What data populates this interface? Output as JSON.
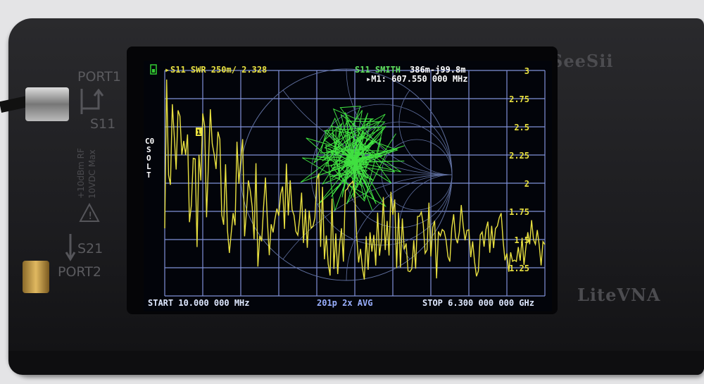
{
  "device": {
    "brand_top": "SeeSii",
    "brand_bottom": "LiteVNA",
    "port1_label": "PORT1",
    "port1_param": "S11",
    "port2_label": "PORT2",
    "port2_param": "S21",
    "warning_rf": "+10dBm RF",
    "warning_dc": "10VDC Max"
  },
  "screen": {
    "trace1_header": "S11 SWR 250m/ 2.328",
    "trace2_header": "S11 SMITH",
    "trace2_value": "386m-j99.8m",
    "marker_readout": "M1: 607.550 000 MHz",
    "cal_status": [
      "C0",
      "S",
      "O",
      "L",
      "T"
    ],
    "y_ticks": [
      "3",
      "2.75",
      "2.5",
      "2.25",
      "2",
      "1.75",
      "1.5",
      "1.25"
    ],
    "marker_label": "1",
    "start": "START  10.000 000 MHz",
    "points_avg": "201p  2x AVG",
    "stop": "STOP 6.300 000 000 GHz",
    "colors": {
      "swr_trace": "#e8e040",
      "smith_trace": "#40e040",
      "grid": "#8090d8",
      "text": "#ffffff"
    }
  }
}
